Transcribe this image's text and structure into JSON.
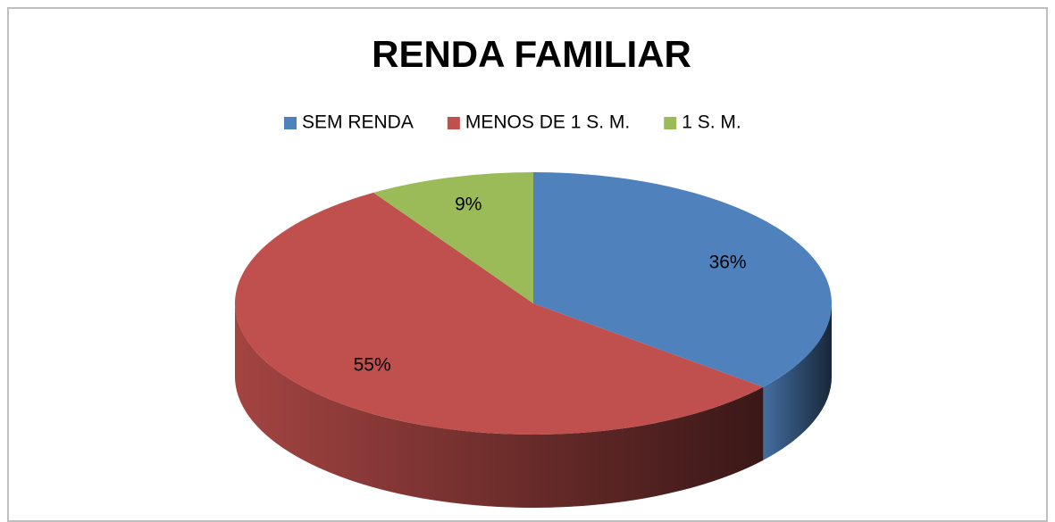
{
  "chart_data": {
    "type": "pie",
    "title": "RENDA FAMILIAR",
    "categories": [
      "SEM RENDA",
      "MENOS DE 1 S. M.",
      "1 S. M."
    ],
    "values": [
      36,
      55,
      9
    ],
    "value_labels": [
      "36%",
      "55%",
      "9%"
    ],
    "colors": [
      "#4f81bd",
      "#c0504d",
      "#9bbb59"
    ],
    "legend": "top"
  }
}
